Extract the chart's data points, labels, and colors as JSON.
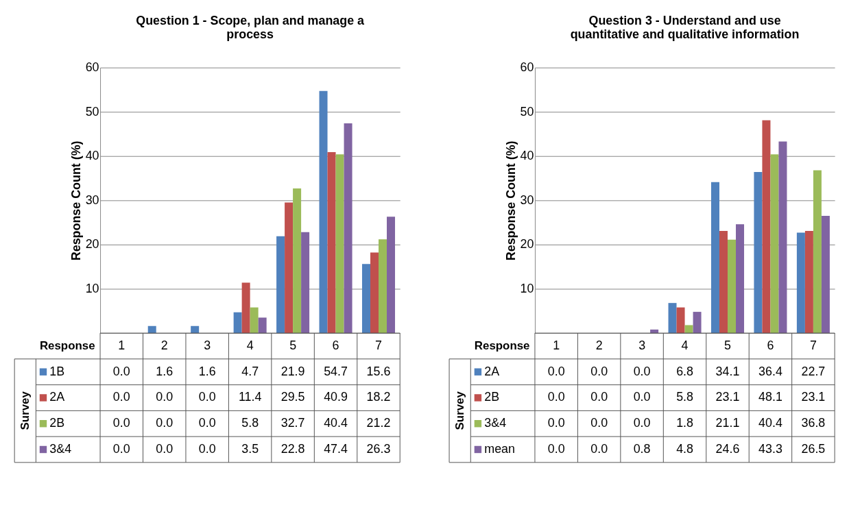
{
  "chart_data": [
    {
      "type": "bar",
      "title": "Question 1 - Scope, plan and manage a process",
      "ylabel": "Response Count (%)",
      "xlabel": "Response",
      "legend_title": "Survey",
      "categories": [
        "1",
        "2",
        "3",
        "4",
        "5",
        "6",
        "7"
      ],
      "series": [
        {
          "name": "1B",
          "color": "#4f81bd",
          "values": [
            0.0,
            1.6,
            1.6,
            4.7,
            21.9,
            54.7,
            15.6
          ],
          "value_labels": [
            "0.0",
            "1.6",
            "1.6",
            "4.7",
            "21.9",
            "54.7",
            "15.6"
          ]
        },
        {
          "name": "2A",
          "color": "#c0504d",
          "values": [
            0.0,
            0.0,
            0.0,
            11.4,
            29.5,
            40.9,
            18.2
          ],
          "value_labels": [
            "0.0",
            "0.0",
            "0.0",
            "11.4",
            "29.5",
            "40.9",
            "18.2"
          ]
        },
        {
          "name": "2B",
          "color": "#9bbb59",
          "values": [
            0.0,
            0.0,
            0.0,
            5.8,
            32.7,
            40.4,
            21.2
          ],
          "value_labels": [
            "0.0",
            "0.0",
            "0.0",
            "5.8",
            "32.7",
            "40.4",
            "21.2"
          ]
        },
        {
          "name": "3&4",
          "color": "#8064a2",
          "values": [
            0.0,
            0.0,
            0.0,
            3.5,
            22.8,
            47.4,
            26.3
          ],
          "value_labels": [
            "0.0",
            "0.0",
            "0.0",
            "3.5",
            "22.8",
            "47.4",
            "26.3"
          ]
        }
      ],
      "ylim": [
        0,
        60
      ],
      "yticks": [
        10,
        20,
        30,
        40,
        50,
        60
      ],
      "grid": "y",
      "legend": "bottom"
    },
    {
      "type": "bar",
      "title": "Question 3 - Understand and use quantitative and qualitative information",
      "ylabel": "Response Count (%)",
      "xlabel": "Response",
      "legend_title": "Survey",
      "categories": [
        "1",
        "2",
        "3",
        "4",
        "5",
        "6",
        "7"
      ],
      "series": [
        {
          "name": "2A",
          "color": "#4f81bd",
          "values": [
            0.0,
            0.0,
            0.0,
            6.8,
            34.1,
            36.4,
            22.7
          ],
          "value_labels": [
            "0.0",
            "0.0",
            "0.0",
            "6.8",
            "34.1",
            "36.4",
            "22.7"
          ]
        },
        {
          "name": "2B",
          "color": "#c0504d",
          "values": [
            0.0,
            0.0,
            0.0,
            5.8,
            23.1,
            48.1,
            23.1
          ],
          "value_labels": [
            "0.0",
            "0.0",
            "0.0",
            "5.8",
            "23.1",
            "48.1",
            "23.1"
          ]
        },
        {
          "name": "3&4",
          "color": "#9bbb59",
          "values": [
            0.0,
            0.0,
            0.0,
            1.8,
            21.1,
            40.4,
            36.8
          ],
          "value_labels": [
            "0.0",
            "0.0",
            "0.0",
            "1.8",
            "21.1",
            "40.4",
            "36.8"
          ]
        },
        {
          "name": "mean",
          "color": "#8064a2",
          "values": [
            0.0,
            0.0,
            0.8,
            4.8,
            24.6,
            43.3,
            26.5
          ],
          "value_labels": [
            "0.0",
            "0.0",
            "0.8",
            "4.8",
            "24.6",
            "43.3",
            "26.5"
          ]
        }
      ],
      "ylim": [
        0,
        60
      ],
      "yticks": [
        10,
        20,
        30,
        40,
        50,
        60
      ],
      "grid": "y",
      "legend": "bottom"
    }
  ]
}
